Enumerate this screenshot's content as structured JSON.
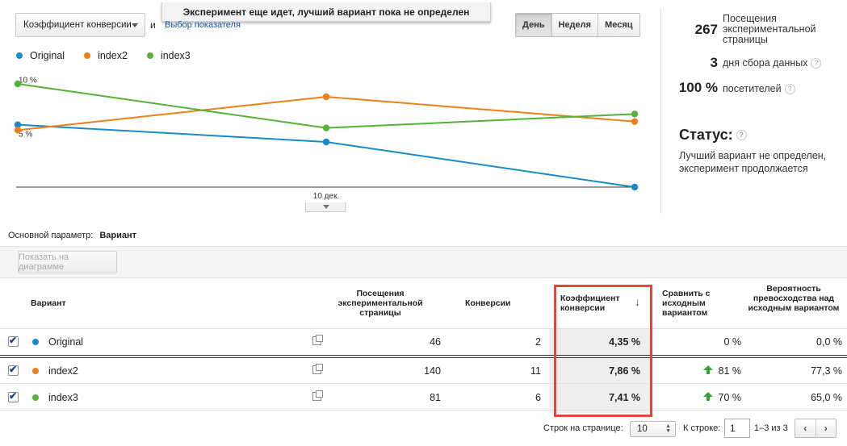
{
  "banner": "Эксперимент еще идет, лучший вариант пока не определен",
  "metric_select": "Коэффициент конверсии",
  "and_text": "и",
  "choose_metric_link": "Выбор показателя",
  "range_buttons": [
    "День",
    "Неделя",
    "Месяц"
  ],
  "active_range": "День",
  "chart_data": {
    "type": "line",
    "x": [
      "",
      "10 дек.",
      ""
    ],
    "series": [
      {
        "name": "Original",
        "color": "#1a8ac6",
        "values": [
          5.8,
          4.2,
          0.0
        ]
      },
      {
        "name": "index2",
        "color": "#ef7f1a",
        "values": [
          5.3,
          8.4,
          6.1
        ]
      },
      {
        "name": "index3",
        "color": "#55b238",
        "values": [
          9.6,
          5.5,
          6.8
        ]
      }
    ],
    "ylim": [
      0,
      10.5
    ],
    "y_ticks": [
      "10 %",
      "5 %"
    ],
    "xlabel": "",
    "ylabel": "",
    "grid": false,
    "legend": "top-left"
  },
  "summary": {
    "visits_value": "267",
    "visits_label": "Посещения экспериментальной страницы",
    "days_value": "3",
    "days_label": "дня сбора данных",
    "visitors_value": "100 %",
    "visitors_label": "посетителей",
    "help_glyph": "?",
    "status_title": "Статус:",
    "status_text": "Лучший вариант не определен, эксперимент продолжается"
  },
  "primary_param": {
    "label": "Основной параметр:",
    "value": "Вариант"
  },
  "show_on_chart_button": "Показать на диаграмме",
  "table": {
    "headers": {
      "variant": "Вариант",
      "visits": "Посещения экспериментальной страницы",
      "conversions": "Конверсии",
      "rate": "Коэффициент конверсии",
      "compare": "Сравнить с исходным вариантом",
      "probability": "Вероятность превосходства над исходным вариантом"
    },
    "sort_arrow": "↓",
    "rows": [
      {
        "name": "Original",
        "color": "#1a8ac6",
        "visits": "46",
        "conversions": "2",
        "rate": "4,35 %",
        "compare": "0 %",
        "compare_up": false,
        "probability": "0,0 %"
      },
      {
        "name": "index2",
        "color": "#ef7f1a",
        "visits": "140",
        "conversions": "11",
        "rate": "7,86 %",
        "compare": "81 %",
        "compare_up": true,
        "probability": "77,3 %"
      },
      {
        "name": "index3",
        "color": "#55b238",
        "visits": "81",
        "conversions": "6",
        "rate": "7,41 %",
        "compare": "70 %",
        "compare_up": true,
        "probability": "65,0 %"
      }
    ]
  },
  "pagination": {
    "rows_per_page_label": "Строк на странице:",
    "rows_per_page_value": "10",
    "go_to_row_label": "К строке:",
    "go_to_row_value": "1",
    "range_text": "1–3 из 3",
    "prev": "‹",
    "next": "›"
  }
}
